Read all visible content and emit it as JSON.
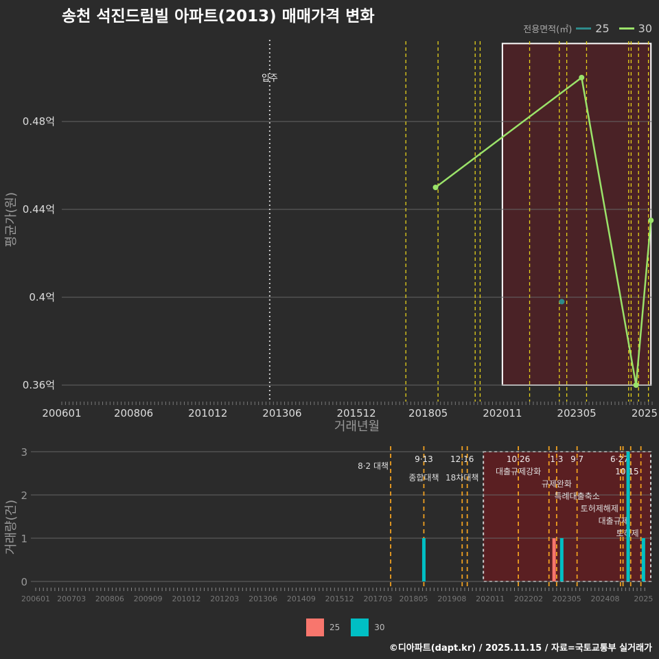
{
  "title": "송천 석진드림빌 아파트(2013) 매매가격 변화",
  "legend": {
    "title": "전용면적(㎡)",
    "items": [
      {
        "label": "25",
        "color": "#2e8b8b"
      },
      {
        "label": "30",
        "color": "#9be36a"
      }
    ]
  },
  "bottom_legend": [
    {
      "label": "25",
      "color": "#f8766d"
    },
    {
      "label": "30",
      "color": "#00bfc4"
    }
  ],
  "footer": "©디아파트(dapt.kr) / 2025.11.15 / 자료=국토교통부 실거래가",
  "chart_data": [
    {
      "type": "line",
      "title": "송천 석진드림빌 아파트(2013) 매매가격 변화",
      "xlabel": "거래년월",
      "ylabel": "평균가(원)",
      "ylim": [
        0.35,
        0.51
      ],
      "yticks": [
        {
          "v": 0.36,
          "l": "0.36억"
        },
        {
          "v": 0.4,
          "l": "0.4억"
        },
        {
          "v": 0.44,
          "l": "0.44억"
        },
        {
          "v": 0.48,
          "l": "0.48억"
        }
      ],
      "xticks": [
        "200601",
        "200806",
        "201012",
        "201306",
        "201512",
        "201805",
        "202011",
        "202305",
        "2025"
      ],
      "series": [
        {
          "name": "25",
          "color": "#2e8b8b",
          "points": [
            [
              "202211",
              0.398
            ]
          ]
        },
        {
          "name": "30",
          "color": "#9be36a",
          "points": [
            [
              "201808",
              0.45
            ],
            [
              "202307",
              0.5
            ],
            [
              "202505",
              0.36
            ],
            [
              "202511",
              0.435
            ]
          ]
        }
      ],
      "annotation": {
        "label": "입주",
        "month": "201301"
      },
      "highlight": {
        "from": "202011",
        "to": "202511",
        "ymin": 0.36,
        "ymax": 0.5155
      }
    },
    {
      "type": "bar",
      "xlabel": "",
      "ylabel": "거래량(건)",
      "ylim": [
        0,
        3
      ],
      "yticks": [
        0,
        1,
        2,
        3
      ],
      "xticks": [
        "200601",
        "200703",
        "200806",
        "200909",
        "201012",
        "201203",
        "201306",
        "201409",
        "201512",
        "201703",
        "201805",
        "201908",
        "202011",
        "202202",
        "202305",
        "202408",
        "2025"
      ],
      "bars": [
        {
          "month": "201809",
          "series": "30",
          "value": 1
        },
        {
          "month": "202212",
          "series": "25",
          "value": 1
        },
        {
          "month": "202303",
          "series": "30",
          "value": 1
        },
        {
          "month": "202505",
          "series": "30",
          "value": 3
        },
        {
          "month": "202511",
          "series": "30",
          "value": 1
        }
      ],
      "policies": [
        {
          "month": "201708",
          "date": "",
          "name": "8·2 대책"
        },
        {
          "month": "201809",
          "date": "9·13",
          "name": "종합대책"
        },
        {
          "month": "201912",
          "date": "12·16",
          "name": "18차대책"
        },
        {
          "month": "202002",
          "date": "",
          "name": ""
        },
        {
          "month": "202110",
          "date": "10·26",
          "name": "대출규제강화"
        },
        {
          "month": "202210",
          "date": "",
          "name": ""
        },
        {
          "month": "202301",
          "date": "1·3",
          "name": "규제완화"
        },
        {
          "month": "202309",
          "date": "9·7",
          "name": "특례대출축소"
        },
        {
          "month": "202502",
          "date": "",
          "name": "토허제해제"
        },
        {
          "month": "202503",
          "date": "",
          "name": ""
        },
        {
          "month": "202506",
          "date": "6·27",
          "name": "대출규제"
        },
        {
          "month": "202510",
          "date": "10·15",
          "name": "토허제"
        }
      ]
    }
  ]
}
